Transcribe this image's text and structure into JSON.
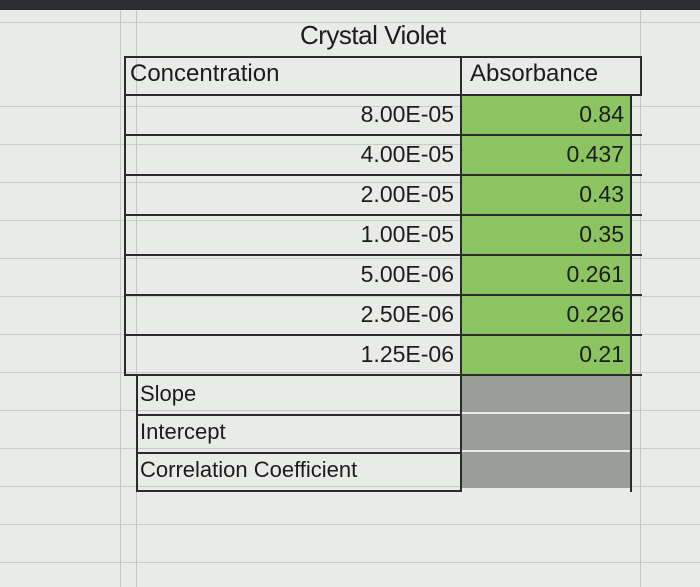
{
  "title": "Crystal Violet",
  "headers": {
    "concentration": "Concentration",
    "absorbance": "Absorbance"
  },
  "rows": [
    {
      "concentration": "8.00E-05",
      "absorbance": "0.84"
    },
    {
      "concentration": "4.00E-05",
      "absorbance": "0.437"
    },
    {
      "concentration": "2.00E-05",
      "absorbance": "0.43"
    },
    {
      "concentration": "1.00E-05",
      "absorbance": "0.35"
    },
    {
      "concentration": "5.00E-06",
      "absorbance": "0.261"
    },
    {
      "concentration": "2.50E-06",
      "absorbance": "0.226"
    },
    {
      "concentration": "1.25E-06",
      "absorbance": "0.21"
    }
  ],
  "results": [
    {
      "label": "Slope"
    },
    {
      "label": "Intercept"
    },
    {
      "label": "Correlation Coefficient"
    }
  ],
  "colors": {
    "absorbance_fill": "#8dc462",
    "result_fill": "#9b9d9a"
  }
}
